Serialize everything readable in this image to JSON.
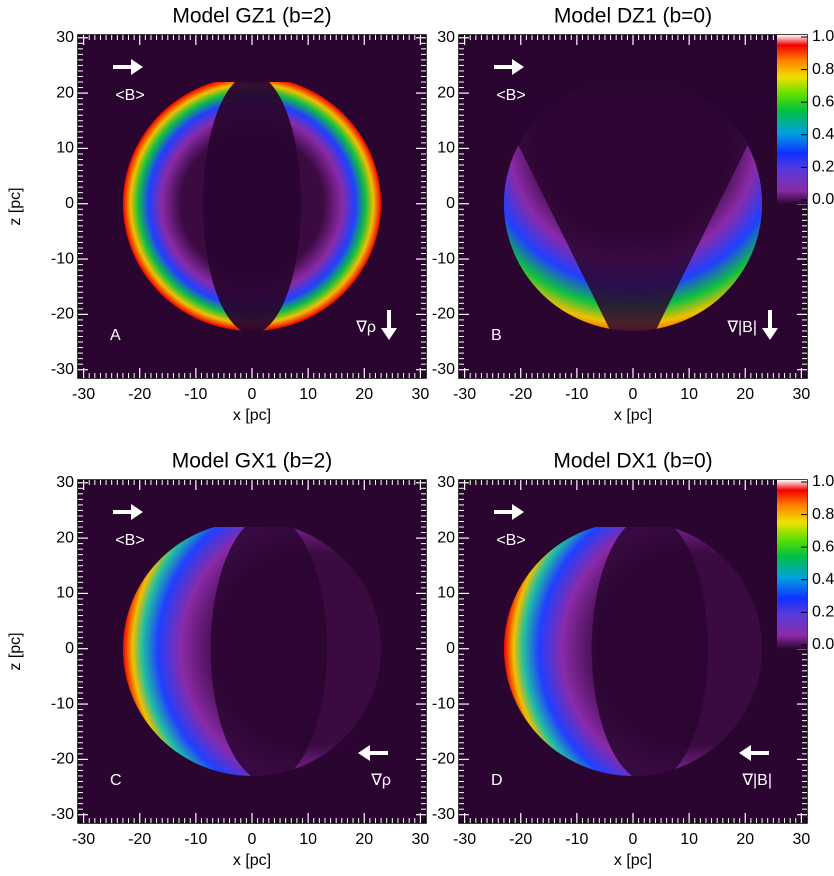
{
  "chart_data": [
    {
      "type": "heatmap",
      "title": "Model GZ1 (b=2)",
      "xlabel": "x [pc]",
      "ylabel": "z [pc]",
      "panel_label": "A",
      "annotations": [
        "<B>",
        "∇ρ"
      ],
      "field_direction": "right",
      "gradient_direction": "down",
      "pattern": "sides",
      "xlim": [
        -31,
        31
      ],
      "ylim": [
        -31.5,
        30.5
      ],
      "xticks": [
        -30,
        -20,
        -10,
        0,
        10,
        20,
        30
      ],
      "yticks": [
        -30,
        -20,
        -10,
        0,
        10,
        20,
        30
      ]
    },
    {
      "type": "heatmap",
      "title": "Model DZ1 (b=0)",
      "xlabel": "x [pc]",
      "panel_label": "B",
      "annotations": [
        "<B>",
        "∇|B|"
      ],
      "field_direction": "right",
      "gradient_direction": "down",
      "pattern": "bottom",
      "xlim": [
        -31,
        31
      ],
      "ylim": [
        -31.5,
        30.5
      ],
      "xticks": [
        -30,
        -20,
        -10,
        0,
        10,
        20,
        30
      ],
      "yticks": [
        -30,
        -20,
        -10,
        0,
        10,
        20,
        30
      ],
      "clim": [
        0,
        1.0
      ],
      "colorbar_ticks": [
        {
          "value": 0,
          "label": "0.0"
        },
        {
          "value": 0.2,
          "label": "0.2"
        },
        {
          "value": 0.4,
          "label": "0.4"
        },
        {
          "value": 0.6,
          "label": "0.6"
        },
        {
          "value": 0.8,
          "label": "0.8"
        },
        {
          "value": 1.0,
          "label": "1.0"
        }
      ]
    },
    {
      "type": "heatmap",
      "title": "Model GX1 (b=2)",
      "xlabel": "x [pc]",
      "ylabel": "z [pc]",
      "panel_label": "C",
      "annotations": [
        "<B>",
        "∇ρ"
      ],
      "field_direction": "right",
      "gradient_direction": "left",
      "pattern": "left",
      "xlim": [
        -31,
        31
      ],
      "ylim": [
        -31.5,
        30.5
      ],
      "xticks": [
        -30,
        -20,
        -10,
        0,
        10,
        20,
        30
      ],
      "yticks": [
        -30,
        -20,
        -10,
        0,
        10,
        20,
        30
      ]
    },
    {
      "type": "heatmap",
      "title": "Model DX1 (b=0)",
      "xlabel": "x [pc]",
      "panel_label": "D",
      "annotations": [
        "<B>",
        "∇|B|"
      ],
      "field_direction": "right",
      "gradient_direction": "left",
      "pattern": "left",
      "xlim": [
        -31,
        31
      ],
      "ylim": [
        -31.5,
        30.5
      ],
      "xticks": [
        -30,
        -20,
        -10,
        0,
        10,
        20,
        30
      ],
      "yticks": [
        -30,
        -20,
        -10,
        0,
        10,
        20,
        30
      ],
      "clim": [
        0,
        1.0
      ],
      "colorbar_ticks": [
        {
          "value": 0,
          "label": "0.0"
        },
        {
          "value": 0.2,
          "label": "0.2"
        },
        {
          "value": 0.4,
          "label": "0.4"
        },
        {
          "value": 0.6,
          "label": "0.6"
        },
        {
          "value": 0.8,
          "label": "0.8"
        },
        {
          "value": 1.0,
          "label": "1.0"
        }
      ]
    }
  ]
}
